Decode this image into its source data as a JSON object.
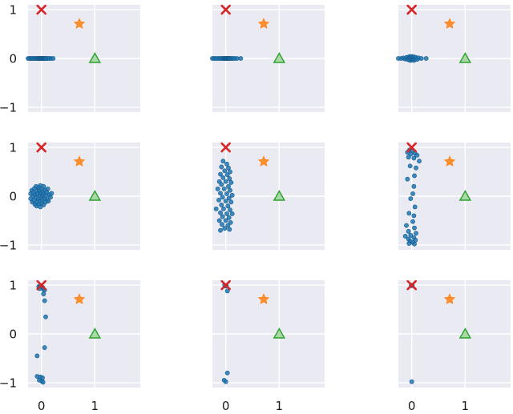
{
  "chart_data": [
    {
      "type": "scatter",
      "panel": "row1-col1",
      "xlim": [
        -0.25,
        1.85
      ],
      "ylim": [
        -1.1,
        1.1
      ],
      "xticks": [
        0,
        1
      ],
      "yticks": [
        -1,
        0,
        1
      ],
      "show_xtick_labels": false,
      "show_ytick_labels": true,
      "markers": {
        "x_marker": [
          0,
          1
        ],
        "star_marker": [
          0.71,
          0.71
        ],
        "triangle_marker": [
          1,
          0
        ]
      },
      "points": [
        [
          -0.25,
          0
        ],
        [
          -0.22,
          0
        ],
        [
          -0.2,
          0
        ],
        [
          -0.18,
          0
        ],
        [
          -0.16,
          0
        ],
        [
          -0.14,
          0
        ],
        [
          -0.12,
          0
        ],
        [
          -0.1,
          0
        ],
        [
          -0.08,
          0
        ],
        [
          -0.07,
          0
        ],
        [
          -0.06,
          0
        ],
        [
          -0.05,
          0
        ],
        [
          -0.04,
          0
        ],
        [
          -0.03,
          0
        ],
        [
          -0.02,
          0
        ],
        [
          -0.01,
          0
        ],
        [
          0,
          0
        ],
        [
          0.01,
          0
        ],
        [
          0.02,
          0
        ],
        [
          0.03,
          0
        ],
        [
          0.04,
          0
        ],
        [
          0.05,
          0
        ],
        [
          0.06,
          0
        ],
        [
          0.07,
          0
        ],
        [
          0.08,
          0
        ],
        [
          0.1,
          0
        ],
        [
          0.12,
          0
        ],
        [
          0.15,
          0
        ],
        [
          0.18,
          0
        ],
        [
          0.22,
          0
        ]
      ]
    },
    {
      "type": "scatter",
      "panel": "row1-col2",
      "xlim": [
        -0.25,
        1.85
      ],
      "ylim": [
        -1.1,
        1.1
      ],
      "xticks": [
        0,
        1
      ],
      "yticks": [
        -1,
        0,
        1
      ],
      "show_xtick_labels": false,
      "show_ytick_labels": false,
      "markers": {
        "x_marker": [
          0,
          1
        ],
        "star_marker": [
          0.71,
          0.71
        ],
        "triangle_marker": [
          1,
          0
        ]
      },
      "points": [
        [
          -0.25,
          0
        ],
        [
          -0.22,
          0
        ],
        [
          -0.19,
          0
        ],
        [
          -0.16,
          0
        ],
        [
          -0.13,
          0
        ],
        [
          -0.1,
          0
        ],
        [
          -0.08,
          0
        ],
        [
          -0.06,
          0
        ],
        [
          -0.04,
          0
        ],
        [
          -0.03,
          0
        ],
        [
          -0.02,
          0
        ],
        [
          -0.01,
          0
        ],
        [
          0,
          0
        ],
        [
          0.01,
          0
        ],
        [
          0.02,
          0
        ],
        [
          0.03,
          0
        ],
        [
          0.04,
          0
        ],
        [
          0.05,
          0
        ],
        [
          0.06,
          0
        ],
        [
          0.07,
          0
        ],
        [
          0.08,
          0
        ],
        [
          0.1,
          0
        ],
        [
          0.12,
          0
        ],
        [
          0.14,
          0
        ],
        [
          0.17,
          0
        ],
        [
          0.21,
          0
        ],
        [
          0.28,
          0
        ]
      ]
    },
    {
      "type": "scatter",
      "panel": "row1-col3",
      "xlim": [
        -0.25,
        1.85
      ],
      "ylim": [
        -1.1,
        1.1
      ],
      "xticks": [
        0,
        1
      ],
      "yticks": [
        -1,
        0,
        1
      ],
      "show_xtick_labels": false,
      "show_ytick_labels": false,
      "markers": {
        "x_marker": [
          0,
          1
        ],
        "star_marker": [
          0.71,
          0.71
        ],
        "triangle_marker": [
          1,
          0
        ]
      },
      "points": [
        [
          -0.25,
          0
        ],
        [
          -0.2,
          0
        ],
        [
          -0.16,
          0.01
        ],
        [
          -0.13,
          -0.01
        ],
        [
          -0.1,
          0.02
        ],
        [
          -0.08,
          -0.02
        ],
        [
          -0.06,
          0.03
        ],
        [
          -0.05,
          -0.03
        ],
        [
          -0.04,
          0.02
        ],
        [
          -0.03,
          0.04
        ],
        [
          -0.02,
          -0.04
        ],
        [
          -0.01,
          0.03
        ],
        [
          0,
          -0.02
        ],
        [
          0.01,
          0.04
        ],
        [
          0.02,
          -0.03
        ],
        [
          0.03,
          0.02
        ],
        [
          0.04,
          -0.04
        ],
        [
          0.05,
          0.03
        ],
        [
          0.06,
          -0.01
        ],
        [
          0.08,
          0.02
        ],
        [
          0.1,
          -0.02
        ],
        [
          0.13,
          0.01
        ],
        [
          0.18,
          0
        ],
        [
          0.27,
          0
        ]
      ]
    },
    {
      "type": "scatter",
      "panel": "row2-col1",
      "xlim": [
        -0.25,
        1.85
      ],
      "ylim": [
        -1.1,
        1.1
      ],
      "xticks": [
        0,
        1
      ],
      "yticks": [
        -1,
        0,
        1
      ],
      "show_xtick_labels": false,
      "show_ytick_labels": true,
      "markers": {
        "x_marker": [
          0,
          1
        ],
        "star_marker": [
          0.71,
          0.71
        ],
        "triangle_marker": [
          1,
          0
        ]
      },
      "points": [
        [
          -0.2,
          0.05
        ],
        [
          -0.2,
          -0.05
        ],
        [
          -0.18,
          0.12
        ],
        [
          -0.17,
          -0.12
        ],
        [
          -0.16,
          0
        ],
        [
          -0.15,
          0.08
        ],
        [
          -0.14,
          -0.08
        ],
        [
          -0.13,
          0.16
        ],
        [
          -0.12,
          -0.17
        ],
        [
          -0.12,
          0.03
        ],
        [
          -0.1,
          -0.03
        ],
        [
          -0.1,
          0.2
        ],
        [
          -0.09,
          -0.2
        ],
        [
          -0.08,
          0.1
        ],
        [
          -0.08,
          -0.12
        ],
        [
          -0.07,
          0.05
        ],
        [
          -0.06,
          -0.06
        ],
        [
          -0.05,
          0.18
        ],
        [
          -0.05,
          -0.16
        ],
        [
          -0.04,
          0.12
        ],
        [
          -0.03,
          -0.1
        ],
        [
          -0.03,
          0.02
        ],
        [
          -0.02,
          0.22
        ],
        [
          -0.02,
          -0.22
        ],
        [
          -0.01,
          0.06
        ],
        [
          0,
          -0.04
        ],
        [
          0,
          0.15
        ],
        [
          0.01,
          -0.15
        ],
        [
          0.02,
          0.09
        ],
        [
          0.02,
          -0.08
        ],
        [
          0.03,
          0.01
        ],
        [
          0.04,
          0.2
        ],
        [
          0.04,
          -0.18
        ],
        [
          0.05,
          0.05
        ],
        [
          0.06,
          -0.05
        ],
        [
          0.07,
          0.12
        ],
        [
          0.08,
          -0.12
        ],
        [
          0.09,
          0.02
        ],
        [
          0.1,
          0.08
        ],
        [
          0.11,
          -0.07
        ],
        [
          0.12,
          0.15
        ],
        [
          0.13,
          -0.1
        ],
        [
          0.15,
          0.03
        ],
        [
          0.17,
          -0.02
        ],
        [
          0.19,
          0.06
        ]
      ]
    },
    {
      "type": "scatter",
      "panel": "row2-col2",
      "xlim": [
        -0.25,
        1.85
      ],
      "ylim": [
        -1.1,
        1.1
      ],
      "xticks": [
        0,
        1
      ],
      "yticks": [
        -1,
        0,
        1
      ],
      "show_xtick_labels": false,
      "show_ytick_labels": false,
      "markers": {
        "x_marker": [
          0,
          1
        ],
        "star_marker": [
          0.71,
          0.71
        ],
        "triangle_marker": [
          1,
          0
        ]
      },
      "points": [
        [
          -0.05,
          0.72
        ],
        [
          0.02,
          0.66
        ],
        [
          -0.08,
          0.6
        ],
        [
          0.05,
          0.58
        ],
        [
          -0.02,
          0.52
        ],
        [
          0.08,
          0.5
        ],
        [
          -0.1,
          0.45
        ],
        [
          0.03,
          0.44
        ],
        [
          -0.05,
          0.38
        ],
        [
          0.07,
          0.36
        ],
        [
          -0.12,
          0.3
        ],
        [
          0,
          0.3
        ],
        [
          0.1,
          0.28
        ],
        [
          -0.08,
          0.24
        ],
        [
          0.05,
          0.2
        ],
        [
          -0.15,
          0.15
        ],
        [
          -0.03,
          0.15
        ],
        [
          0.08,
          0.12
        ],
        [
          -0.1,
          0.06
        ],
        [
          0.02,
          0.05
        ],
        [
          0.12,
          0.02
        ],
        [
          -0.06,
          -0.02
        ],
        [
          0.06,
          -0.04
        ],
        [
          -0.13,
          -0.08
        ],
        [
          0,
          -0.1
        ],
        [
          0.1,
          -0.12
        ],
        [
          -0.08,
          -0.18
        ],
        [
          0.04,
          -0.2
        ],
        [
          -0.18,
          -0.26
        ],
        [
          -0.04,
          -0.26
        ],
        [
          0.08,
          -0.28
        ],
        [
          -0.1,
          -0.34
        ],
        [
          0.02,
          -0.36
        ],
        [
          0.12,
          -0.36
        ],
        [
          -0.06,
          -0.42
        ],
        [
          0.06,
          -0.44
        ],
        [
          -0.12,
          -0.5
        ],
        [
          0,
          -0.5
        ],
        [
          0.09,
          -0.54
        ],
        [
          -0.07,
          -0.58
        ],
        [
          0.04,
          -0.6
        ],
        [
          -0.02,
          -0.66
        ],
        [
          0.07,
          -0.68
        ],
        [
          -0.1,
          -0.7
        ]
      ]
    },
    {
      "type": "scatter",
      "panel": "row2-col3",
      "xlim": [
        -0.25,
        1.85
      ],
      "ylim": [
        -1.1,
        1.1
      ],
      "xticks": [
        0,
        1
      ],
      "yticks": [
        -1,
        0,
        1
      ],
      "show_xtick_labels": false,
      "show_ytick_labels": false,
      "markers": {
        "x_marker": [
          0,
          1
        ],
        "star_marker": [
          0.71,
          0.71
        ],
        "triangle_marker": [
          1,
          0
        ]
      },
      "points": [
        [
          -0.04,
          0.95
        ],
        [
          0.02,
          0.93
        ],
        [
          -0.08,
          0.9
        ],
        [
          0.06,
          0.88
        ],
        [
          -0.02,
          0.86
        ],
        [
          0.1,
          0.84
        ],
        [
          -0.06,
          0.8
        ],
        [
          0.04,
          0.78
        ],
        [
          0.14,
          0.72
        ],
        [
          -0.03,
          0.62
        ],
        [
          0.08,
          0.58
        ],
        [
          0.05,
          0.42
        ],
        [
          -0.08,
          0.35
        ],
        [
          0.04,
          0.2
        ],
        [
          0.02,
          0.05
        ],
        [
          -0.02,
          -0.05
        ],
        [
          0.06,
          -0.22
        ],
        [
          -0.05,
          -0.35
        ],
        [
          0.04,
          -0.4
        ],
        [
          0.02,
          -0.52
        ],
        [
          -0.1,
          -0.6
        ],
        [
          0.05,
          -0.65
        ],
        [
          -0.06,
          -0.72
        ],
        [
          0.08,
          -0.76
        ],
        [
          -0.02,
          -0.8
        ],
        [
          -0.12,
          -0.82
        ],
        [
          0.04,
          -0.85
        ],
        [
          -0.06,
          -0.88
        ],
        [
          0.07,
          -0.9
        ],
        [
          -0.03,
          -0.92
        ],
        [
          0.02,
          -0.95
        ],
        [
          -0.05,
          -0.97
        ],
        [
          0.05,
          -0.98
        ]
      ]
    },
    {
      "type": "scatter",
      "panel": "row3-col1",
      "xlim": [
        -0.25,
        1.85
      ],
      "ylim": [
        -1.1,
        1.1
      ],
      "xticks": [
        0,
        1
      ],
      "yticks": [
        -1,
        0,
        1
      ],
      "show_xtick_labels": true,
      "show_ytick_labels": true,
      "markers": {
        "x_marker": [
          0,
          1
        ],
        "star_marker": [
          0.71,
          0.71
        ],
        "triangle_marker": [
          1,
          0
        ]
      },
      "points": [
        [
          -0.05,
          0.97
        ],
        [
          -0.02,
          0.98
        ],
        [
          0.02,
          0.96
        ],
        [
          -0.04,
          0.93
        ],
        [
          0.03,
          0.92
        ],
        [
          0.06,
          0.9
        ],
        [
          0.04,
          0.82
        ],
        [
          0.06,
          0.68
        ],
        [
          0.08,
          0.35
        ],
        [
          0.06,
          -0.28
        ],
        [
          -0.08,
          -0.45
        ],
        [
          -0.08,
          -0.87
        ],
        [
          -0.02,
          -0.88
        ],
        [
          0.02,
          -0.9
        ],
        [
          -0.04,
          -0.95
        ],
        [
          0.01,
          -0.97
        ],
        [
          0.03,
          -0.99
        ]
      ]
    },
    {
      "type": "scatter",
      "panel": "row3-col2",
      "xlim": [
        -0.25,
        1.85
      ],
      "ylim": [
        -1.1,
        1.1
      ],
      "xticks": [
        0,
        1
      ],
      "yticks": [
        -1,
        0,
        1
      ],
      "show_xtick_labels": true,
      "show_ytick_labels": false,
      "markers": {
        "x_marker": [
          0,
          1
        ],
        "star_marker": [
          0.71,
          0.71
        ],
        "triangle_marker": [
          1,
          0
        ]
      },
      "points": [
        [
          -0.02,
          1
        ],
        [
          0.01,
          0.99
        ],
        [
          0,
          0.98
        ],
        [
          0.03,
          0.88
        ],
        [
          0.03,
          -0.8
        ],
        [
          -0.03,
          -0.95
        ],
        [
          0,
          -0.98
        ]
      ]
    },
    {
      "type": "scatter",
      "panel": "row3-col3",
      "xlim": [
        -0.25,
        1.85
      ],
      "ylim": [
        -1.1,
        1.1
      ],
      "xticks": [
        0,
        1
      ],
      "yticks": [
        -1,
        0,
        1
      ],
      "show_xtick_labels": true,
      "show_ytick_labels": false,
      "markers": {
        "x_marker": [
          0,
          1
        ],
        "star_marker": [
          0.71,
          0.71
        ],
        "triangle_marker": [
          1,
          0
        ]
      },
      "points": [
        [
          0,
          1
        ],
        [
          0.01,
          0.99
        ],
        [
          -0.01,
          0.99
        ],
        [
          0,
          -0.98
        ]
      ]
    }
  ],
  "colors": {
    "panel_bg": "#eaeaf2",
    "grid": "#ffffff",
    "points": "#1f77b4",
    "points_edge": "#15598a",
    "x_marker": "#d62728",
    "star_marker": "#ff7f0e",
    "triangle_marker": "#2ca02c"
  }
}
